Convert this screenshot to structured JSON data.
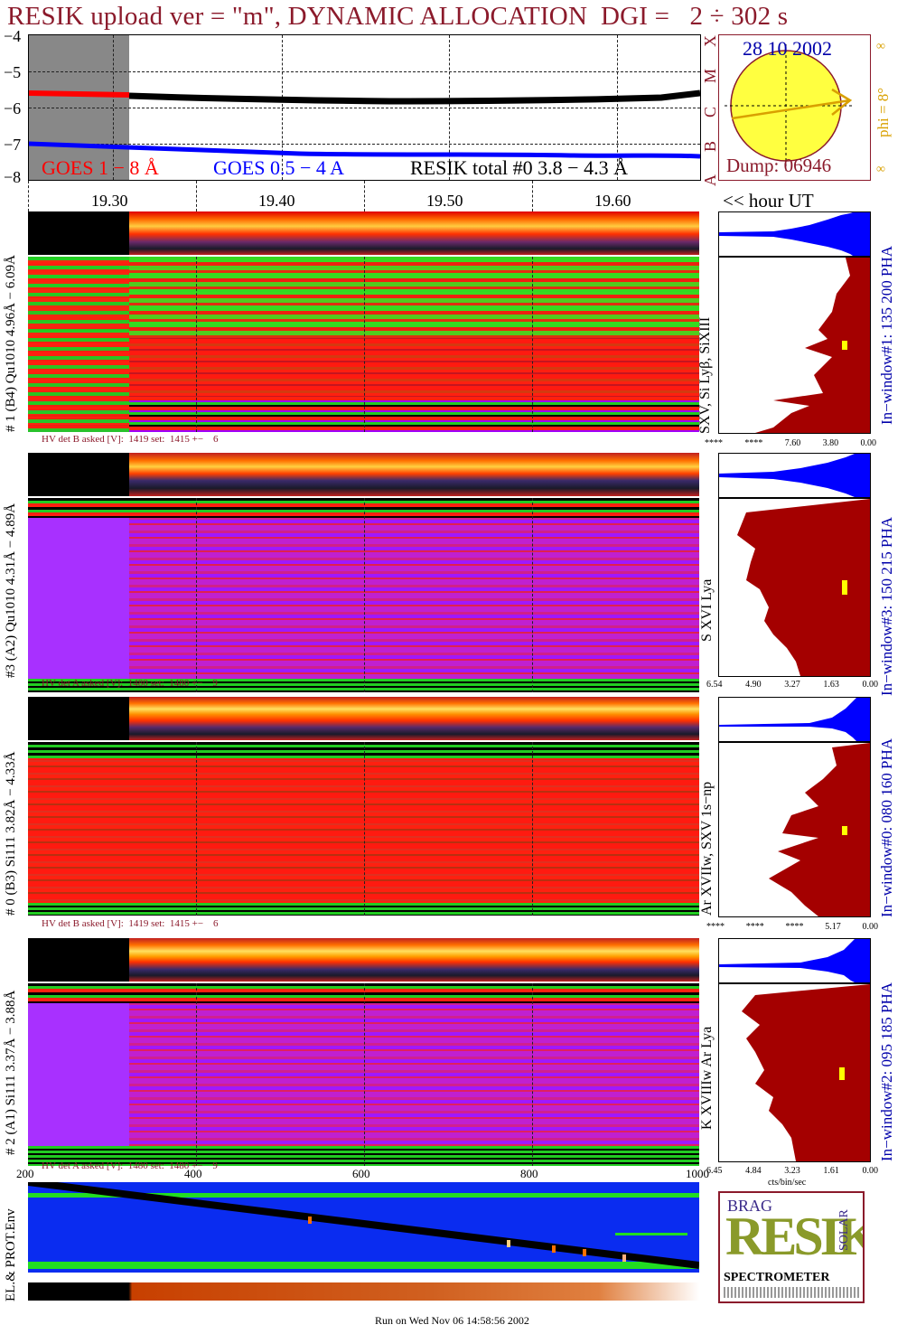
{
  "title": "RESIK upload ver = \"m\", DYNAMIC ALLOCATION  DGI =   2 ÷ 302 s",
  "top_plot": {
    "y_ticks": [
      "−4",
      "−5",
      "−6",
      "−7",
      "−8"
    ],
    "legend": {
      "goes_long": "GOES 1 − 8 Å",
      "goes_short": "GOES 0.5 − 4 A",
      "resik_total": "RESIK total #0  3.8 − 4.3 Å"
    },
    "class_letters": [
      "A",
      "B",
      "C",
      "M",
      "X"
    ]
  },
  "sun_panel": {
    "date": "28 10 2002",
    "dump": "Dump: 06946",
    "phi": "phi =  8°",
    "inf_top": "∞",
    "inf_bottom": "∞"
  },
  "time_axis": {
    "ticks": [
      "19.30",
      "19.40",
      "19.50",
      "19.60"
    ],
    "unit_label": "<< hour UT"
  },
  "detectors": [
    {
      "left_label": "# 1 (B4) Qu1010 4.96Å − 6.09Å",
      "line_label": "SXV, Si Lyβ, SiXIII",
      "window_label": "In−window#1:  135 200 PHA",
      "hv": "HV det B asked [V]:  1419 set:  1415 +−    6",
      "bottom_ticks": [
        "****",
        "****",
        "7.60",
        "3.80",
        "0.00"
      ]
    },
    {
      "left_label": "#3 (A2) Qu1010  4.31Å − 4.89Å",
      "line_label": "S XVI Lya",
      "window_label": "In−window#3:  150 215 PHA",
      "hv": "HV det A asked [V]:  1480 set:  1480 +−    9",
      "bottom_ticks": [
        "6.54",
        "4.90",
        "3.27",
        "1.63",
        "0.00"
      ]
    },
    {
      "left_label": "# 0 (B3) Si111  3.82Å − 4.33Å",
      "line_label": "Ar XVIIw,  SXV 1s−np",
      "window_label": "In−window#0:  080 160 PHA",
      "hv": "HV det B asked [V]:  1419 set:  1415 +−    6",
      "bottom_ticks": [
        "****",
        "****",
        "****",
        "5.17",
        "0.00"
      ]
    },
    {
      "left_label": "# 2 (A1) Si111  3.37Å − 3.88Å",
      "line_label": "K XVIIIw  Ar Lya",
      "window_label": "In−window#2:  095 185 PHA",
      "hv": "HV det A asked [V]:  1480 set:  1480 +−    9",
      "bottom_ticks": [
        "6.45",
        "4.84",
        "3.23",
        "1.61",
        "0.00"
      ]
    }
  ],
  "hist_axis_label": "cts/bin/sec",
  "bottom_panel": {
    "ticks": [
      "200",
      "400",
      "600",
      "800",
      "1000"
    ],
    "left_label": "EL.& PROT.Env"
  },
  "logo": {
    "letters": "RESIK",
    "side_letters": "BRAG",
    "side_right": "SOLAR",
    "caption": "SPECTROMETER"
  },
  "footer": "Run on Wed Nov 06 14:58:56 2002",
  "colors": {
    "title": "#8b1a2b",
    "goes_long": "#ff0000",
    "goes_short": "#0000ff",
    "hist_fill": "#a40000",
    "pha_fill": "#0000ff",
    "sun": "#ffff40",
    "sun_axis": "#d9a000",
    "axis_text_blue": "#0000aa"
  }
}
